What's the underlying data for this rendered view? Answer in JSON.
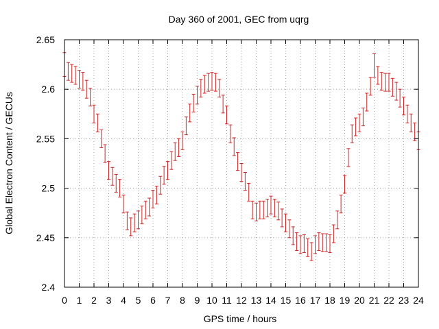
{
  "chart_data": {
    "type": "line",
    "title": "Day 360 of 2001, GEC from uqrg",
    "xlabel": "GPS time / hours",
    "ylabel": "Global Electron Content / GECUs",
    "xlim": [
      0,
      24
    ],
    "ylim": [
      2.4,
      2.65
    ],
    "xticks": [
      "0",
      "1",
      "2",
      "3",
      "4",
      "5",
      "6",
      "7",
      "8",
      "9",
      "10",
      "11",
      "12",
      "13",
      "14",
      "15",
      "16",
      "17",
      "18",
      "19",
      "20",
      "21",
      "22",
      "23",
      "24"
    ],
    "yticks": [
      "2.4",
      "2.45",
      "2.5",
      "2.55",
      "2.6",
      "2.65"
    ],
    "grid": true,
    "series_color": "#d02020",
    "series": [
      {
        "x": [
          0,
          0.25,
          0.5,
          0.75,
          1,
          1.25,
          1.5,
          1.75,
          2,
          2.25,
          2.5,
          2.75,
          3,
          3.25,
          3.5,
          3.75,
          4,
          4.25,
          4.5,
          4.75,
          5,
          5.25,
          5.5,
          5.75,
          6,
          6.25,
          6.5,
          6.75,
          7,
          7.25,
          7.5,
          7.75,
          8,
          8.25,
          8.5,
          8.75,
          9,
          9.25,
          9.5,
          9.75,
          10,
          10.25,
          10.5,
          10.75,
          11,
          11.25,
          11.5,
          11.75,
          12,
          12.25,
          12.5,
          12.75,
          13,
          13.25,
          13.5,
          13.75,
          14,
          14.25,
          14.5,
          14.75,
          15,
          15.25,
          15.5,
          15.75,
          16,
          16.25,
          16.5,
          16.75,
          17,
          17.25,
          17.5,
          17.75,
          18,
          18.25,
          18.5,
          18.75,
          19,
          19.25,
          19.5,
          19.75,
          20,
          20.25,
          20.5,
          20.75,
          21,
          21.25,
          21.5,
          21.75,
          22,
          22.25,
          22.5,
          22.75,
          23,
          23.25,
          23.5,
          23.75,
          24
        ],
        "y": [
          2.625,
          2.618,
          2.616,
          2.614,
          2.61,
          2.608,
          2.6,
          2.592,
          2.575,
          2.566,
          2.55,
          2.535,
          2.518,
          2.512,
          2.505,
          2.5,
          2.484,
          2.467,
          2.461,
          2.465,
          2.468,
          2.473,
          2.478,
          2.481,
          2.489,
          2.493,
          2.503,
          2.513,
          2.518,
          2.528,
          2.537,
          2.541,
          2.548,
          2.563,
          2.576,
          2.586,
          2.594,
          2.601,
          2.605,
          2.607,
          2.608,
          2.607,
          2.601,
          2.585,
          2.574,
          2.555,
          2.542,
          2.527,
          2.516,
          2.507,
          2.496,
          2.478,
          2.476,
          2.478,
          2.478,
          2.48,
          2.483,
          2.48,
          2.477,
          2.47,
          2.465,
          2.459,
          2.452,
          2.446,
          2.443,
          2.444,
          2.44,
          2.436,
          2.443,
          2.446,
          2.445,
          2.445,
          2.444,
          2.454,
          2.468,
          2.484,
          2.504,
          2.531,
          2.555,
          2.562,
          2.566,
          2.572,
          2.587,
          2.603,
          2.624,
          2.614,
          2.608,
          2.607,
          2.607,
          2.602,
          2.598,
          2.591,
          2.583,
          2.575,
          2.566,
          2.557,
          2.548
        ],
        "err": [
          0.012,
          0.009,
          0.009,
          0.009,
          0.009,
          0.009,
          0.009,
          0.009,
          0.009,
          0.009,
          0.009,
          0.009,
          0.009,
          0.009,
          0.009,
          0.009,
          0.009,
          0.009,
          0.009,
          0.009,
          0.009,
          0.009,
          0.009,
          0.009,
          0.009,
          0.009,
          0.009,
          0.009,
          0.009,
          0.009,
          0.009,
          0.009,
          0.009,
          0.009,
          0.009,
          0.009,
          0.009,
          0.009,
          0.009,
          0.009,
          0.009,
          0.009,
          0.009,
          0.009,
          0.009,
          0.009,
          0.009,
          0.009,
          0.009,
          0.009,
          0.009,
          0.009,
          0.009,
          0.009,
          0.009,
          0.009,
          0.009,
          0.009,
          0.009,
          0.009,
          0.009,
          0.009,
          0.009,
          0.009,
          0.009,
          0.009,
          0.009,
          0.009,
          0.009,
          0.009,
          0.009,
          0.009,
          0.009,
          0.009,
          0.009,
          0.009,
          0.009,
          0.009,
          0.009,
          0.009,
          0.009,
          0.009,
          0.009,
          0.009,
          0.012,
          0.009,
          0.009,
          0.009,
          0.009,
          0.009,
          0.009,
          0.009,
          0.009,
          0.009,
          0.009,
          0.009,
          0.009
        ]
      }
    ]
  }
}
